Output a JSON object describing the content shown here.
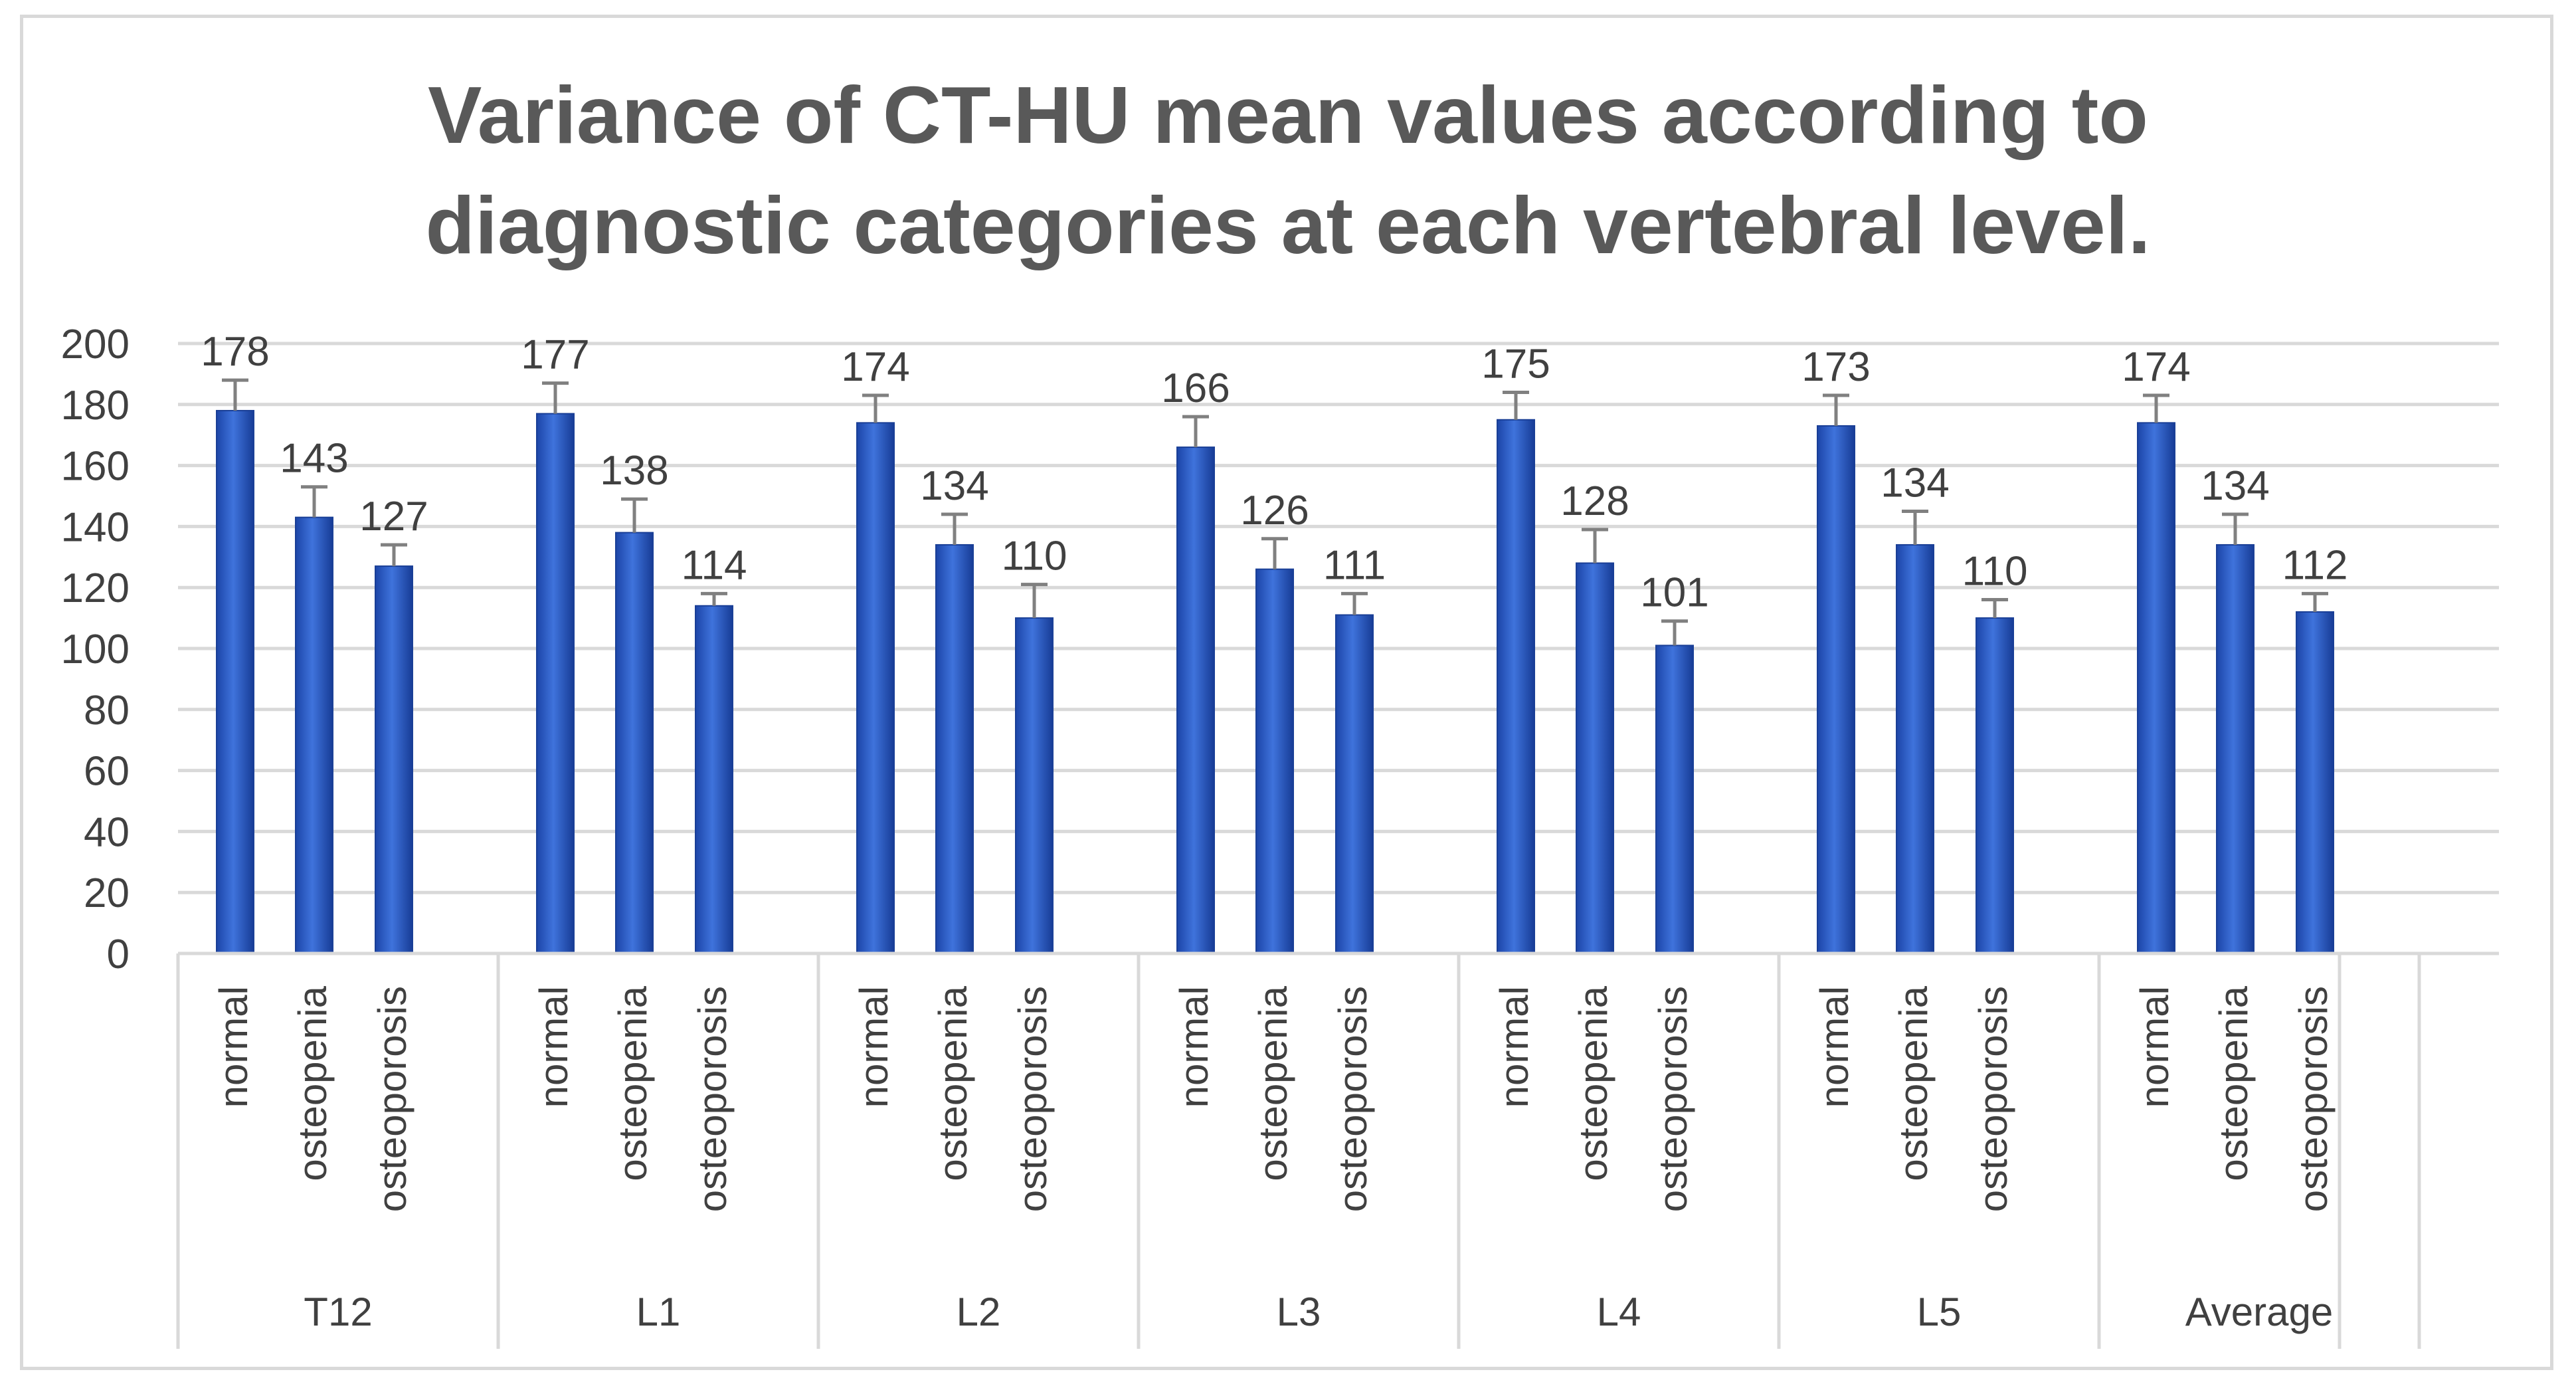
{
  "chart_data": {
    "type": "bar",
    "title_line1": "Variance of CT-HU mean values according to",
    "title_line2": "diagnostic categories at each vertebral level.",
    "ylim": [
      0,
      200
    ],
    "yticks": [
      0,
      20,
      40,
      60,
      80,
      100,
      120,
      140,
      160,
      180,
      200
    ],
    "grid": true,
    "bar_color": "#2f62c8",
    "error_bar_color": "#808080",
    "groups": [
      {
        "label": "T12",
        "bars": [
          {
            "category": "normal",
            "value": 178,
            "label": "178",
            "err": 10
          },
          {
            "category": "osteopenia",
            "value": 143,
            "label": "143",
            "err": 10
          },
          {
            "category": "osteoporosis",
            "value": 127,
            "label": "127",
            "err": 7
          }
        ]
      },
      {
        "label": "L1",
        "bars": [
          {
            "category": "normal",
            "value": 177,
            "label": "177",
            "err": 10
          },
          {
            "category": "osteopenia",
            "value": 138,
            "label": "138",
            "err": 11
          },
          {
            "category": "osteoporosis",
            "value": 114,
            "label": "114",
            "err": 4
          }
        ]
      },
      {
        "label": "L2",
        "bars": [
          {
            "category": "normal",
            "value": 174,
            "label": "174",
            "err": 9
          },
          {
            "category": "osteopenia",
            "value": 134,
            "label": "134",
            "err": 10
          },
          {
            "category": "osteoporosis",
            "value": 110,
            "label": "110",
            "err": 11
          }
        ]
      },
      {
        "label": "L3",
        "bars": [
          {
            "category": "normal",
            "value": 166,
            "label": "166",
            "err": 10
          },
          {
            "category": "osteopenia",
            "value": 126,
            "label": "126",
            "err": 10
          },
          {
            "category": "osteoporosis",
            "value": 111,
            "label": "111",
            "err": 7
          }
        ]
      },
      {
        "label": "L4",
        "bars": [
          {
            "category": "normal",
            "value": 175,
            "label": "175",
            "err": 9
          },
          {
            "category": "osteopenia",
            "value": 128,
            "label": "128",
            "err": 11
          },
          {
            "category": "osteoporosis",
            "value": 101,
            "label": "101",
            "err": 8
          }
        ]
      },
      {
        "label": "L5",
        "bars": [
          {
            "category": "normal",
            "value": 173,
            "label": "173",
            "err": 10
          },
          {
            "category": "osteopenia",
            "value": 134,
            "label": "134",
            "err": 11
          },
          {
            "category": "osteoporosis",
            "value": 110,
            "label": "110",
            "err": 6
          }
        ]
      },
      {
        "label": "Average",
        "bars": [
          {
            "category": "normal",
            "value": 174,
            "label": "174",
            "err": 9
          },
          {
            "category": "osteopenia",
            "value": 134,
            "label": "134",
            "err": 10
          },
          {
            "category": "osteoporosis",
            "value": 112,
            "label": "112",
            "err": 6
          }
        ]
      }
    ]
  }
}
